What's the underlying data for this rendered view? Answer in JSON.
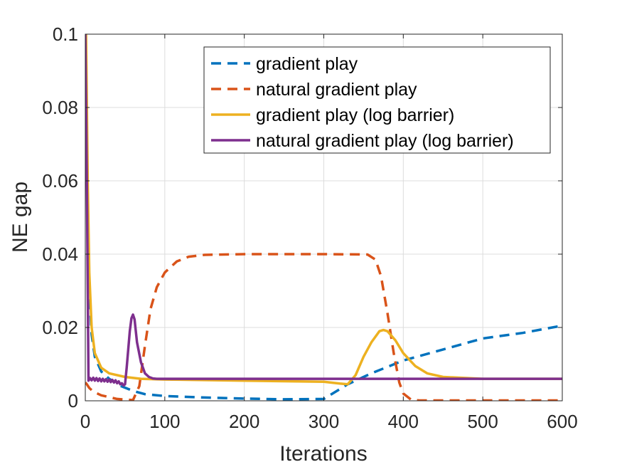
{
  "chart_data": {
    "type": "line",
    "title": "",
    "xlabel": "Iterations",
    "ylabel": "NE gap",
    "xlim": [
      0,
      600
    ],
    "ylim": [
      0,
      0.1
    ],
    "grid": true,
    "legend_position": "top-right",
    "x_ticks": [
      0,
      100,
      200,
      300,
      400,
      500,
      600
    ],
    "x_tick_labels": [
      "0",
      "100",
      "200",
      "300",
      "400",
      "500",
      "600"
    ],
    "y_ticks": [
      0,
      0.02,
      0.04,
      0.06,
      0.08,
      0.1
    ],
    "y_tick_labels": [
      "0",
      "0.02",
      "0.04",
      "0.06",
      "0.08",
      "0.1"
    ],
    "series": [
      {
        "name": "gradient play",
        "color": "#0072BD",
        "style": "dashed",
        "x": [
          3,
          5,
          8,
          12,
          20,
          30,
          45,
          60,
          75,
          100,
          150,
          200,
          250,
          300,
          330,
          360,
          400,
          450,
          500,
          550,
          600
        ],
        "y": [
          0.05,
          0.03,
          0.018,
          0.012,
          0.008,
          0.006,
          0.004,
          0.0027,
          0.0018,
          0.0013,
          0.0009,
          0.0006,
          0.0004,
          0.0005,
          0.0045,
          0.0075,
          0.011,
          0.014,
          0.017,
          0.0185,
          0.0205
        ]
      },
      {
        "name": "natural gradient play",
        "color": "#D95319",
        "style": "dashed",
        "x": [
          0,
          2,
          5,
          10,
          20,
          40,
          60,
          68,
          75,
          82,
          90,
          100,
          115,
          130,
          150,
          200,
          300,
          355,
          365,
          372,
          380,
          388,
          395,
          400,
          410,
          420,
          500,
          600
        ],
        "y": [
          0.005,
          0.0045,
          0.0035,
          0.0025,
          0.0015,
          0.0005,
          0.0002,
          0.004,
          0.015,
          0.025,
          0.031,
          0.035,
          0.038,
          0.0393,
          0.0398,
          0.04,
          0.04,
          0.0399,
          0.0385,
          0.034,
          0.024,
          0.013,
          0.005,
          0.002,
          0.0003,
          0.0001,
          0.0001,
          0.0001
        ]
      },
      {
        "name": "gradient play (log barrier)",
        "color": "#EDB120",
        "style": "solid",
        "x": [
          1,
          3,
          5,
          8,
          12,
          20,
          30,
          50,
          70,
          100,
          200,
          300,
          320,
          330,
          340,
          350,
          360,
          370,
          375,
          380,
          390,
          400,
          415,
          430,
          450,
          500,
          600
        ],
        "y": [
          0.1,
          0.06,
          0.035,
          0.02,
          0.013,
          0.009,
          0.0075,
          0.0065,
          0.006,
          0.0058,
          0.0055,
          0.0052,
          0.0047,
          0.0045,
          0.007,
          0.012,
          0.016,
          0.019,
          0.0193,
          0.019,
          0.0165,
          0.013,
          0.0095,
          0.0075,
          0.0065,
          0.006,
          0.006
        ]
      },
      {
        "name": "natural gradient play (log barrier)",
        "color": "#7E2F8E",
        "style": "solid",
        "x": [
          0,
          2,
          4,
          6,
          8,
          10,
          12,
          14,
          16,
          18,
          20,
          22,
          24,
          26,
          28,
          30,
          32,
          34,
          36,
          38,
          40,
          42,
          44,
          46,
          48,
          50,
          52,
          54,
          56,
          58,
          60,
          62,
          65,
          70,
          75,
          80,
          85,
          90,
          100,
          150,
          200,
          300,
          400,
          500,
          600
        ],
        "y": [
          0.1,
          0.06,
          0.0055,
          0.0062,
          0.0056,
          0.0063,
          0.0055,
          0.0062,
          0.0054,
          0.0061,
          0.0053,
          0.006,
          0.0053,
          0.0059,
          0.0052,
          0.0058,
          0.0051,
          0.0057,
          0.005,
          0.0056,
          0.0048,
          0.0053,
          0.0045,
          0.0048,
          0.0042,
          0.0045,
          0.009,
          0.014,
          0.019,
          0.0225,
          0.0235,
          0.0222,
          0.016,
          0.0105,
          0.0075,
          0.0065,
          0.0061,
          0.006,
          0.006,
          0.006,
          0.006,
          0.006,
          0.006,
          0.006,
          0.006
        ]
      }
    ]
  }
}
